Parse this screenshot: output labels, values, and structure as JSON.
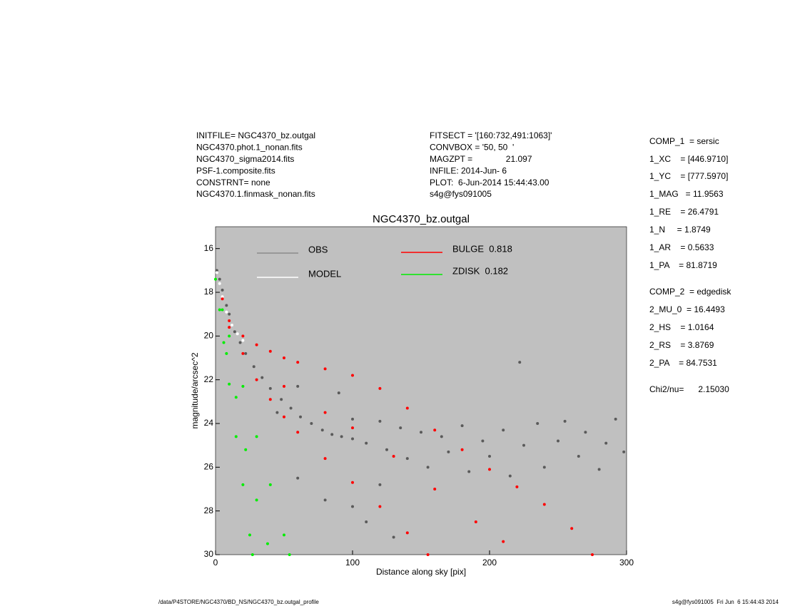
{
  "header": {
    "left": [
      "INITFILE= NGC4370_bz.outgal",
      "NGC4370.phot.1_nonan.fits",
      "NGC4370_sigma2014.fits",
      "PSF-1.composite.fits",
      "CONSTRNT= none",
      "NGC4370.1.finmask_nonan.fits"
    ],
    "middle": [
      "FITSECT = '[160:732,491:1063]'",
      "CONVBOX = '50, 50  '",
      "MAGZPT =              21.097",
      "INFILE: 2014-Jun- 6",
      "PLOT:  6-Jun-2014 15:44:43.00",
      "s4g@fys091005"
    ]
  },
  "params": [
    "COMP_1  = sersic",
    "1_XC    = [446.9710]",
    "1_YC    = [777.5970]",
    "1_MAG   = 11.9563",
    "1_RE    = 26.4791",
    "1_N     = 1.8749",
    "1_AR    = 0.5633",
    "1_PA    = 81.8719",
    "COMP_2  = edgedisk",
    "2_MU_0  = 16.4493",
    "2_HS    = 1.0164",
    "2_RS    = 3.8769",
    "2_PA    = 84.7531",
    "Chi2/nu=      2.15030"
  ],
  "footer": {
    "left": "/data/P4STORE/NGC4370/BD_NS/NGC4370_bz.outgal_profile",
    "right": "s4g@fys091005  Fri Jun  6 15:44:43 2014"
  },
  "chart_data": {
    "type": "scatter",
    "title": "NGC4370_bz.outgal",
    "x_label": "Distance along sky [pix]",
    "y_label": "magnitude/arcsec^2",
    "xlim": [
      0,
      300
    ],
    "ylim": [
      30,
      15
    ],
    "xticks": [
      0,
      100,
      200,
      300
    ],
    "yticks": [
      16,
      18,
      20,
      22,
      24,
      26,
      28,
      30
    ],
    "background": "#c0c0c0",
    "series": [
      {
        "name": "OBS",
        "color": "#5a5a5a",
        "legend_color": "#8a8a8a",
        "x": [
          1,
          3,
          5,
          8,
          10,
          14,
          18,
          22,
          28,
          34,
          40,
          48,
          55,
          62,
          70,
          78,
          85,
          92,
          100,
          100,
          110,
          120,
          125,
          135,
          140,
          150,
          155,
          165,
          170,
          180,
          185,
          195,
          200,
          210,
          215,
          222,
          225,
          235,
          240,
          250,
          255,
          265,
          270,
          280,
          285,
          292,
          298,
          60,
          80,
          110,
          130,
          90,
          60,
          45,
          120,
          100
        ],
        "values": [
          17.0,
          17.4,
          17.9,
          18.6,
          19.0,
          19.8,
          20.3,
          20.8,
          21.4,
          21.9,
          22.4,
          22.9,
          23.3,
          23.7,
          24.0,
          24.3,
          24.5,
          24.6,
          24.7,
          23.8,
          24.9,
          23.9,
          25.2,
          24.2,
          25.6,
          24.4,
          26.0,
          24.6,
          25.3,
          24.1,
          26.2,
          24.8,
          25.5,
          24.3,
          26.4,
          21.2,
          25.0,
          24.0,
          26.0,
          24.8,
          23.9,
          25.5,
          24.4,
          26.1,
          24.9,
          23.8,
          25.3,
          26.5,
          27.5,
          28.5,
          29.2,
          22.6,
          22.3,
          23.5,
          26.8,
          27.8
        ]
      },
      {
        "name": "MODEL",
        "color": "#ffffff",
        "legend_color": "#ffffff",
        "x": [
          1,
          3,
          5,
          8,
          12,
          16,
          20
        ],
        "values": [
          17.1,
          17.6,
          18.2,
          18.9,
          19.5,
          19.9,
          20.2
        ]
      },
      {
        "name": "BULGE  0.818",
        "color": "#ff0000",
        "legend_color": "#ff0000",
        "x": [
          5,
          10,
          20,
          30,
          40,
          50,
          60,
          80,
          100,
          120,
          140,
          160,
          180,
          200,
          220,
          240,
          260,
          275,
          10,
          20,
          30,
          40,
          50,
          60,
          80,
          100,
          120,
          140,
          155,
          50,
          80,
          100,
          130,
          160,
          190,
          210
        ],
        "values": [
          18.3,
          19.3,
          20.0,
          20.4,
          20.7,
          21.0,
          21.2,
          21.5,
          21.8,
          22.4,
          23.3,
          24.3,
          25.2,
          26.1,
          26.9,
          27.7,
          28.8,
          30.0,
          19.6,
          20.8,
          22.0,
          22.9,
          23.7,
          24.4,
          25.6,
          26.7,
          27.8,
          29.0,
          30.0,
          22.3,
          23.5,
          24.2,
          25.5,
          27.0,
          28.5,
          29.4
        ]
      },
      {
        "name": "ZDISK  0.182",
        "color": "#00ee00",
        "legend_color": "#00ee00",
        "x": [
          0,
          5,
          10,
          20,
          30,
          40,
          50,
          54,
          3,
          6,
          10,
          15,
          20,
          25,
          27,
          8,
          15,
          22,
          30,
          38
        ],
        "values": [
          17.4,
          18.8,
          20.0,
          22.3,
          24.6,
          26.8,
          29.1,
          30.0,
          18.8,
          20.3,
          22.2,
          24.6,
          26.8,
          29.1,
          30.0,
          20.8,
          22.8,
          25.2,
          27.5,
          29.5
        ]
      }
    ]
  }
}
